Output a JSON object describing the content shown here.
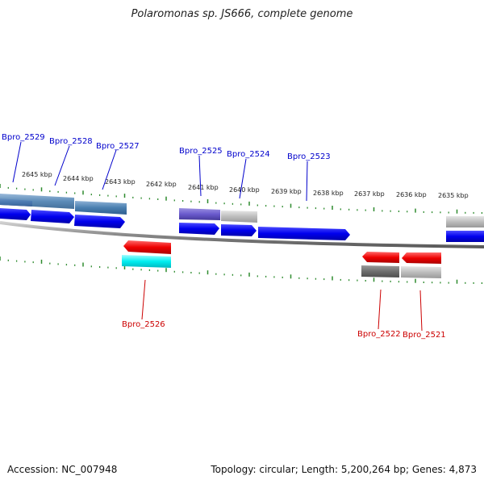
{
  "title": "Polaromonas sp. JS666, complete genome",
  "footer": {
    "accession": "Accession: NC_007948",
    "summary": "Topology: circular; Length: 5,200,264 bp; Genes: 4,873"
  },
  "colors": {
    "forward_label": "#0000cc",
    "reverse_label": "#cc0000",
    "tick": "#2e8b2e",
    "backbone": "#999999"
  },
  "ticks": [
    "2645 kbp",
    "2644 kbp",
    "2643 kbp",
    "2642 kbp",
    "2641 kbp",
    "2640 kbp",
    "2639 kbp",
    "2638 kbp",
    "2637 kbp",
    "2636 kbp",
    "2635 kbp"
  ],
  "genes_forward": [
    "Bpro_2529",
    "Bpro_2528",
    "Bpro_2527",
    "Bpro_2525",
    "Bpro_2524",
    "Bpro_2523"
  ],
  "genes_reverse": [
    "Bpro_2526",
    "Bpro_2522",
    "Bpro_2521"
  ]
}
